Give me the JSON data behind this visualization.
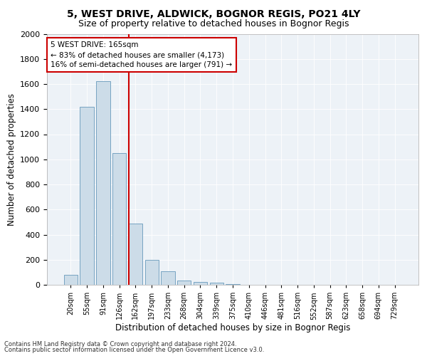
{
  "title1": "5, WEST DRIVE, ALDWICK, BOGNOR REGIS, PO21 4LY",
  "title2": "Size of property relative to detached houses in Bognor Regis",
  "xlabel": "Distribution of detached houses by size in Bognor Regis",
  "ylabel": "Number of detached properties",
  "footnote1": "Contains HM Land Registry data © Crown copyright and database right 2024.",
  "footnote2": "Contains public sector information licensed under the Open Government Licence v3.0.",
  "annotation_title": "5 WEST DRIVE: 165sqm",
  "annotation_line1": "← 83% of detached houses are smaller (4,173)",
  "annotation_line2": "16% of semi-detached houses are larger (791) →",
  "bar_categories": [
    "20sqm",
    "55sqm",
    "91sqm",
    "126sqm",
    "162sqm",
    "197sqm",
    "233sqm",
    "268sqm",
    "304sqm",
    "339sqm",
    "375sqm",
    "410sqm",
    "446sqm",
    "481sqm",
    "516sqm",
    "552sqm",
    "587sqm",
    "623sqm",
    "658sqm",
    "694sqm",
    "729sqm"
  ],
  "bar_values": [
    80,
    1420,
    1620,
    1050,
    490,
    200,
    105,
    35,
    25,
    15,
    5,
    0,
    0,
    0,
    0,
    0,
    0,
    0,
    0,
    0,
    0
  ],
  "bar_color": "#ccdce8",
  "bar_edgecolor": "#6699bb",
  "vline_color": "#cc0000",
  "vline_idx": 4,
  "background_color": "#edf2f7",
  "ylim": [
    0,
    2000
  ],
  "yticks": [
    0,
    200,
    400,
    600,
    800,
    1000,
    1200,
    1400,
    1600,
    1800,
    2000
  ],
  "title1_fontsize": 10,
  "title2_fontsize": 9,
  "xlabel_fontsize": 8.5,
  "ylabel_fontsize": 8.5,
  "tick_fontsize": 8,
  "xtick_fontsize": 7,
  "annot_fontsize": 7.5,
  "footnote_fontsize": 6
}
